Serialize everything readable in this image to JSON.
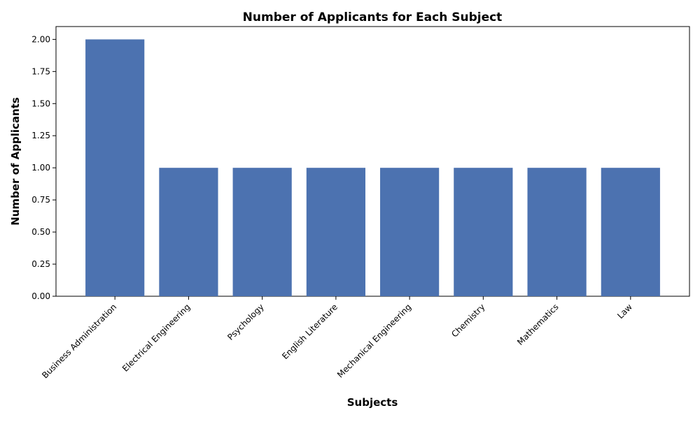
{
  "chart_data": {
    "type": "bar",
    "title": "Number of Applicants for Each Subject",
    "xlabel": "Subjects",
    "ylabel": "Number of Applicants",
    "categories": [
      "Business Administration",
      "Electrical Engineering",
      "Psychology",
      "English Literature",
      "Mechanical Engineering",
      "Chemistry",
      "Mathematics",
      "Law"
    ],
    "values": [
      2,
      1,
      1,
      1,
      1,
      1,
      1,
      1
    ],
    "ylim": [
      0,
      2.1
    ],
    "y_ticks": [
      "0.00",
      "0.25",
      "0.50",
      "0.75",
      "1.00",
      "1.25",
      "1.50",
      "1.75",
      "2.00"
    ],
    "bar_color": "#4c72b0",
    "grid": false,
    "legend": false
  }
}
